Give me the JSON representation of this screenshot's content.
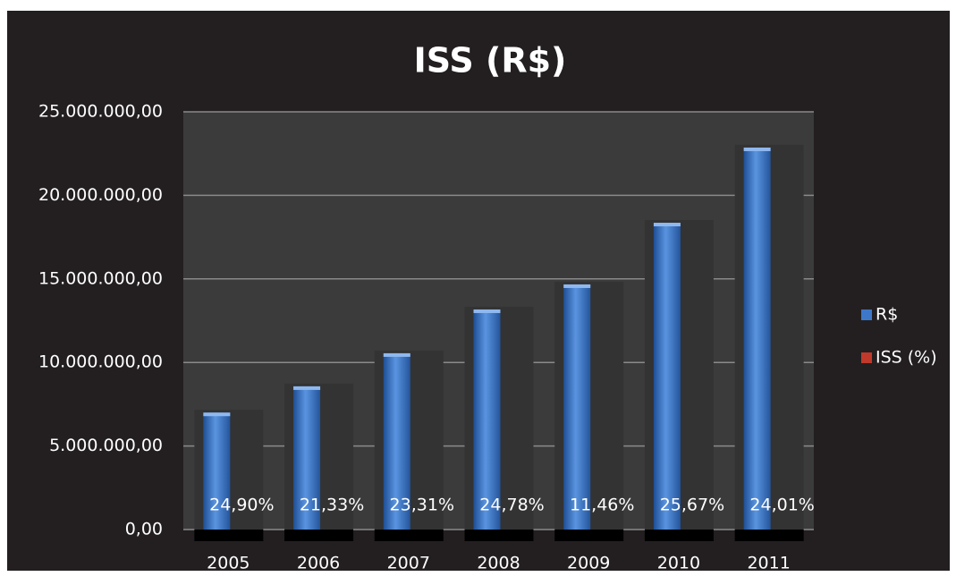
{
  "chart_data": {
    "type": "bar",
    "title": "ISS (R$)",
    "categories": [
      "2005",
      "2006",
      "2007",
      "2008",
      "2009",
      "2010",
      "2011"
    ],
    "series": [
      {
        "name": "R$",
        "color": "#3d78c8",
        "values": [
          7000000,
          8570000,
          10550000,
          13170000,
          14670000,
          18360000,
          22860000
        ]
      },
      {
        "name": "ISS (%)",
        "color": "#c0392b",
        "values": [
          24.9,
          21.33,
          23.31,
          24.78,
          11.46,
          25.67,
          24.01
        ],
        "value_labels": [
          "24,90%",
          "21,33%",
          "23,31%",
          "24,78%",
          "11,46%",
          "25,67%",
          "24,01%"
        ]
      }
    ],
    "ylim": [
      0,
      25000000
    ],
    "yticks": [
      {
        "value": 0,
        "label": "0,00"
      },
      {
        "value": 5000000,
        "label": "5.000.000,00"
      },
      {
        "value": 10000000,
        "label": "10.000.000,00"
      },
      {
        "value": 15000000,
        "label": "15.000.000,00"
      },
      {
        "value": 20000000,
        "label": "20.000.000,00"
      },
      {
        "value": 25000000,
        "label": "25.000.000,00"
      }
    ],
    "grid": true,
    "legend": "right"
  }
}
